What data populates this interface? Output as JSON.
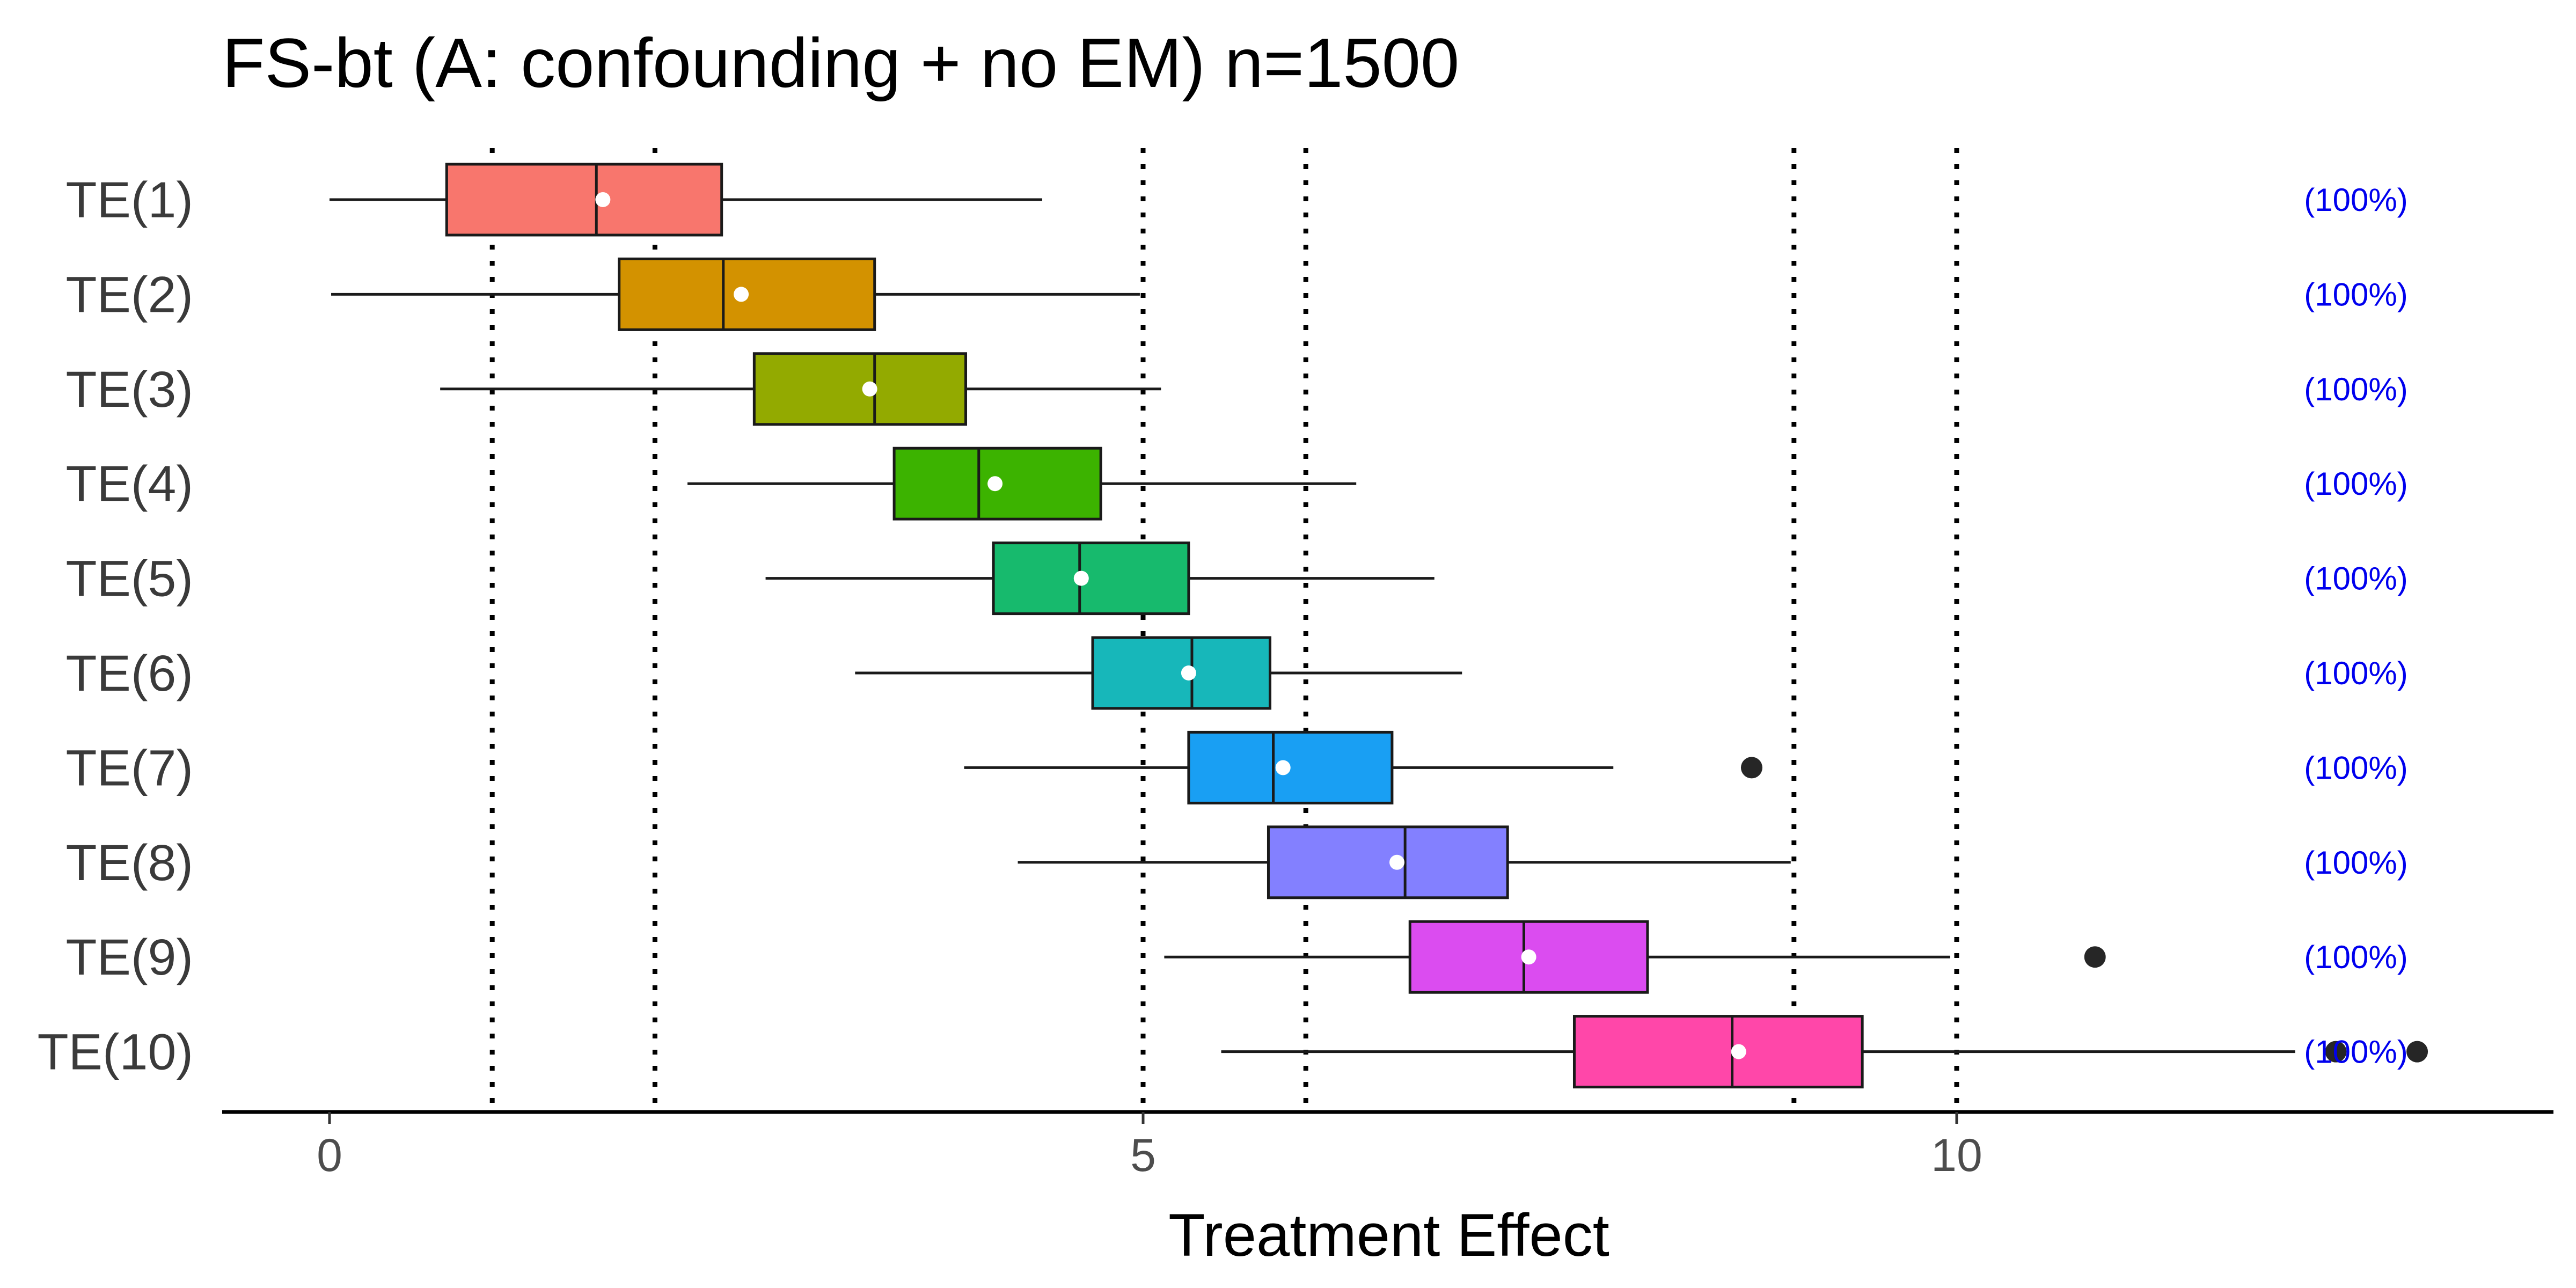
{
  "chart_data": {
    "type": "boxplot",
    "title": "FS-bt (A: confounding + no EM) n=1500",
    "xlabel": "Treatment Effect",
    "ylabel": "",
    "xlim": [
      -0.65,
      13.7
    ],
    "x_ticks": [
      0,
      5,
      10
    ],
    "grid": false,
    "reference_lines": [
      1,
      2,
      5,
      6,
      9,
      10
    ],
    "categories": [
      "TE(1)",
      "TE(2)",
      "TE(3)",
      "TE(4)",
      "TE(5)",
      "TE(6)",
      "TE(7)",
      "TE(8)",
      "TE(9)",
      "TE(10)"
    ],
    "series": [
      {
        "label": "TE(1)",
        "color": "#F8766D",
        "whisker_low": 0.0,
        "q1": 0.72,
        "median": 1.64,
        "q3": 2.41,
        "whisker_high": 4.38,
        "mean": 1.68,
        "outliers": [],
        "annotation": "(100%)"
      },
      {
        "label": "TE(2)",
        "color": "#D39200",
        "whisker_low": 0.01,
        "q1": 1.78,
        "median": 2.42,
        "q3": 3.35,
        "whisker_high": 4.98,
        "mean": 2.53,
        "outliers": [],
        "annotation": "(100%)"
      },
      {
        "label": "TE(3)",
        "color": "#93AA00",
        "whisker_low": 0.68,
        "q1": 2.61,
        "median": 3.35,
        "q3": 3.91,
        "whisker_high": 5.11,
        "mean": 3.32,
        "outliers": [],
        "annotation": "(100%)"
      },
      {
        "label": "TE(4)",
        "color": "#3CB300",
        "whisker_low": 2.2,
        "q1": 3.47,
        "median": 3.99,
        "q3": 4.74,
        "whisker_high": 6.31,
        "mean": 4.09,
        "outliers": [],
        "annotation": "(100%)"
      },
      {
        "label": "TE(5)",
        "color": "#17BA6D",
        "whisker_low": 2.68,
        "q1": 4.08,
        "median": 4.61,
        "q3": 5.28,
        "whisker_high": 6.79,
        "mean": 4.62,
        "outliers": [],
        "annotation": "(100%)"
      },
      {
        "label": "TE(6)",
        "color": "#17B7BA",
        "whisker_low": 3.23,
        "q1": 4.69,
        "median": 5.3,
        "q3": 5.78,
        "whisker_high": 6.96,
        "mean": 5.28,
        "outliers": [],
        "annotation": "(100%)"
      },
      {
        "label": "TE(7)",
        "color": "#199FF3",
        "whisker_low": 3.9,
        "q1": 5.28,
        "median": 5.8,
        "q3": 6.53,
        "whisker_high": 7.89,
        "mean": 5.86,
        "outliers": [
          8.74
        ],
        "annotation": "(100%)"
      },
      {
        "label": "TE(8)",
        "color": "#8380FF",
        "whisker_low": 4.23,
        "q1": 5.77,
        "median": 6.61,
        "q3": 7.24,
        "whisker_high": 8.98,
        "mean": 6.56,
        "outliers": [],
        "annotation": "(100%)"
      },
      {
        "label": "TE(9)",
        "color": "#DB4CF0",
        "whisker_low": 5.13,
        "q1": 6.64,
        "median": 7.34,
        "q3": 8.1,
        "whisker_high": 9.96,
        "mean": 7.37,
        "outliers": [
          10.85
        ],
        "annotation": "(100%)"
      },
      {
        "label": "TE(10)",
        "color": "#FF47A9",
        "whisker_low": 5.48,
        "q1": 7.65,
        "median": 8.62,
        "q3": 9.42,
        "whisker_high": 12.08,
        "mean": 8.66,
        "outliers": [
          12.33,
          12.83
        ],
        "annotation": "(100%)"
      }
    ]
  }
}
